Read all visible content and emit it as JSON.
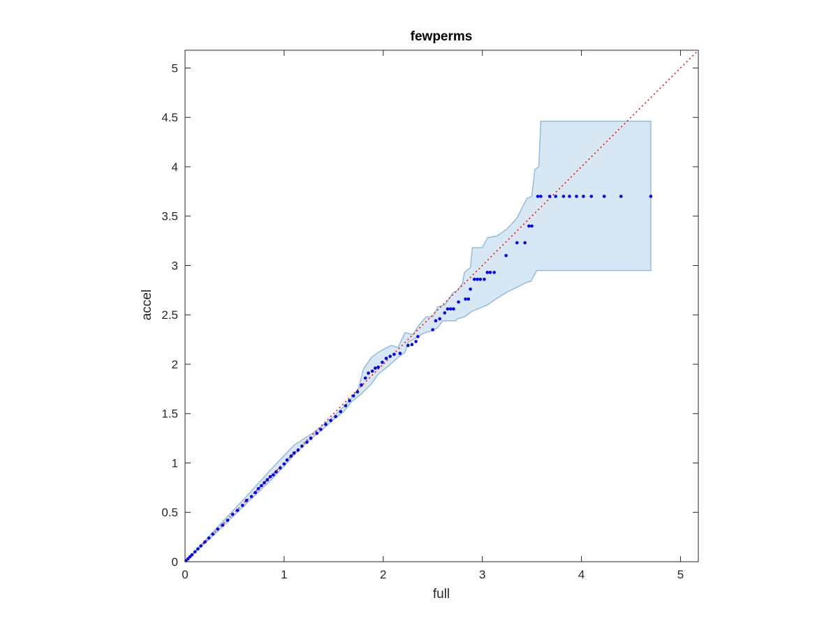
{
  "chart_data": {
    "type": "scatter",
    "title": "fewperms",
    "xlabel": "full",
    "ylabel": "accel",
    "xlim": [
      0,
      5.18
    ],
    "ylim": [
      0,
      5.18
    ],
    "xticks": [
      0,
      1,
      2,
      3,
      4,
      5
    ],
    "yticks": [
      0,
      0.5,
      1,
      1.5,
      2,
      2.5,
      3,
      3.5,
      4,
      4.5,
      5
    ],
    "grid": false,
    "box": true,
    "colors": {
      "points": "#0000ff",
      "reference_line": "#ff0000",
      "band_fill": "#d7e7f3",
      "band_edge": "#8fbde0",
      "axes": "#262626"
    },
    "reference_line": {
      "style": "dotted",
      "from": [
        0,
        0
      ],
      "to": [
        5.18,
        5.18
      ]
    },
    "band_upper": [
      [
        0,
        0
      ],
      [
        0.3,
        0.32
      ],
      [
        0.6,
        0.64
      ],
      [
        0.9,
        0.97
      ],
      [
        1.1,
        1.18
      ],
      [
        1.3,
        1.31
      ],
      [
        1.5,
        1.47
      ],
      [
        1.65,
        1.62
      ],
      [
        1.75,
        1.75
      ],
      [
        1.8,
        1.95
      ],
      [
        1.88,
        2.07
      ],
      [
        1.95,
        2.12
      ],
      [
        2.0,
        2.15
      ],
      [
        2.08,
        2.19
      ],
      [
        2.15,
        2.17
      ],
      [
        2.22,
        2.32
      ],
      [
        2.3,
        2.3
      ],
      [
        2.35,
        2.38
      ],
      [
        2.43,
        2.48
      ],
      [
        2.5,
        2.48
      ],
      [
        2.55,
        2.58
      ],
      [
        2.62,
        2.6
      ],
      [
        2.7,
        2.72
      ],
      [
        2.75,
        2.75
      ],
      [
        2.8,
        2.82
      ],
      [
        2.82,
        2.93
      ],
      [
        2.88,
        2.98
      ],
      [
        2.9,
        3.18
      ],
      [
        3.0,
        3.18
      ],
      [
        3.05,
        3.28
      ],
      [
        3.15,
        3.3
      ],
      [
        3.25,
        3.37
      ],
      [
        3.35,
        3.48
      ],
      [
        3.45,
        3.68
      ],
      [
        3.5,
        3.7
      ],
      [
        3.53,
        3.97
      ],
      [
        3.57,
        4.0
      ],
      [
        3.59,
        4.46
      ],
      [
        4.7,
        4.46
      ]
    ],
    "band_lower": [
      [
        4.7,
        2.95
      ],
      [
        3.55,
        2.95
      ],
      [
        3.49,
        2.84
      ],
      [
        3.45,
        2.83
      ],
      [
        3.35,
        2.78
      ],
      [
        3.25,
        2.73
      ],
      [
        3.15,
        2.67
      ],
      [
        3.05,
        2.6
      ],
      [
        2.98,
        2.57
      ],
      [
        2.9,
        2.54
      ],
      [
        2.82,
        2.48
      ],
      [
        2.75,
        2.46
      ],
      [
        2.73,
        2.44
      ],
      [
        2.6,
        2.44
      ],
      [
        2.55,
        2.37
      ],
      [
        2.5,
        2.34
      ],
      [
        2.42,
        2.32
      ],
      [
        2.35,
        2.28
      ],
      [
        2.25,
        2.22
      ],
      [
        2.22,
        2.12
      ],
      [
        2.15,
        2.07
      ],
      [
        2.05,
        1.98
      ],
      [
        1.95,
        1.9
      ],
      [
        1.88,
        1.8
      ],
      [
        1.78,
        1.7
      ],
      [
        1.68,
        1.62
      ],
      [
        1.6,
        1.52
      ],
      [
        1.5,
        1.44
      ],
      [
        1.4,
        1.35
      ],
      [
        1.3,
        1.27
      ],
      [
        1.2,
        1.18
      ],
      [
        1.1,
        1.08
      ],
      [
        0.9,
        0.86
      ],
      [
        0.6,
        0.57
      ],
      [
        0.3,
        0.28
      ],
      [
        0,
        0
      ]
    ],
    "points": [
      [
        0.01,
        0.01
      ],
      [
        0.03,
        0.03
      ],
      [
        0.05,
        0.05
      ],
      [
        0.07,
        0.07
      ],
      [
        0.1,
        0.1
      ],
      [
        0.13,
        0.13
      ],
      [
        0.16,
        0.16
      ],
      [
        0.2,
        0.2
      ],
      [
        0.24,
        0.24
      ],
      [
        0.28,
        0.28
      ],
      [
        0.33,
        0.33
      ],
      [
        0.38,
        0.37
      ],
      [
        0.43,
        0.42
      ],
      [
        0.48,
        0.48
      ],
      [
        0.53,
        0.52
      ],
      [
        0.58,
        0.57
      ],
      [
        0.62,
        0.62
      ],
      [
        0.67,
        0.66
      ],
      [
        0.71,
        0.7
      ],
      [
        0.74,
        0.74
      ],
      [
        0.77,
        0.77
      ],
      [
        0.8,
        0.8
      ],
      [
        0.83,
        0.83
      ],
      [
        0.86,
        0.86
      ],
      [
        0.89,
        0.88
      ],
      [
        0.92,
        0.91
      ],
      [
        0.96,
        0.95
      ],
      [
        1.0,
        0.99
      ],
      [
        1.03,
        1.03
      ],
      [
        1.07,
        1.07
      ],
      [
        1.1,
        1.1
      ],
      [
        1.14,
        1.13
      ],
      [
        1.18,
        1.17
      ],
      [
        1.23,
        1.21
      ],
      [
        1.27,
        1.25
      ],
      [
        1.33,
        1.3
      ],
      [
        1.37,
        1.34
      ],
      [
        1.42,
        1.39
      ],
      [
        1.47,
        1.43
      ],
      [
        1.52,
        1.47
      ],
      [
        1.57,
        1.52
      ],
      [
        1.62,
        1.58
      ],
      [
        1.66,
        1.63
      ],
      [
        1.7,
        1.68
      ],
      [
        1.74,
        1.72
      ],
      [
        1.78,
        1.79
      ],
      [
        1.82,
        1.86
      ],
      [
        1.85,
        1.91
      ],
      [
        1.89,
        1.93
      ],
      [
        1.92,
        1.96
      ],
      [
        1.95,
        1.97
      ],
      [
        1.99,
        2.02
      ],
      [
        2.03,
        2.06
      ],
      [
        2.07,
        2.08
      ],
      [
        2.11,
        2.1
      ],
      [
        2.17,
        2.11
      ],
      [
        2.25,
        2.19
      ],
      [
        2.29,
        2.2
      ],
      [
        2.33,
        2.23
      ],
      [
        2.35,
        2.28
      ],
      [
        2.5,
        2.35
      ],
      [
        2.53,
        2.44
      ],
      [
        2.57,
        2.46
      ],
      [
        2.62,
        2.52
      ],
      [
        2.65,
        2.56
      ],
      [
        2.68,
        2.56
      ],
      [
        2.71,
        2.56
      ],
      [
        2.76,
        2.63
      ],
      [
        2.83,
        2.66
      ],
      [
        2.86,
        2.66
      ],
      [
        2.88,
        2.76
      ],
      [
        2.92,
        2.86
      ],
      [
        2.95,
        2.86
      ],
      [
        2.98,
        2.86
      ],
      [
        3.02,
        2.86
      ],
      [
        3.05,
        2.93
      ],
      [
        3.08,
        2.93
      ],
      [
        3.12,
        2.93
      ],
      [
        3.24,
        3.1
      ],
      [
        3.35,
        3.23
      ],
      [
        3.43,
        3.23
      ],
      [
        3.47,
        3.4
      ],
      [
        3.5,
        3.4
      ],
      [
        3.56,
        3.7
      ],
      [
        3.59,
        3.7
      ],
      [
        3.68,
        3.7
      ],
      [
        3.74,
        3.7
      ],
      [
        3.82,
        3.7
      ],
      [
        3.88,
        3.7
      ],
      [
        3.95,
        3.7
      ],
      [
        4.02,
        3.7
      ],
      [
        4.1,
        3.7
      ],
      [
        4.23,
        3.7
      ],
      [
        4.4,
        3.7
      ],
      [
        4.7,
        3.7
      ]
    ]
  }
}
